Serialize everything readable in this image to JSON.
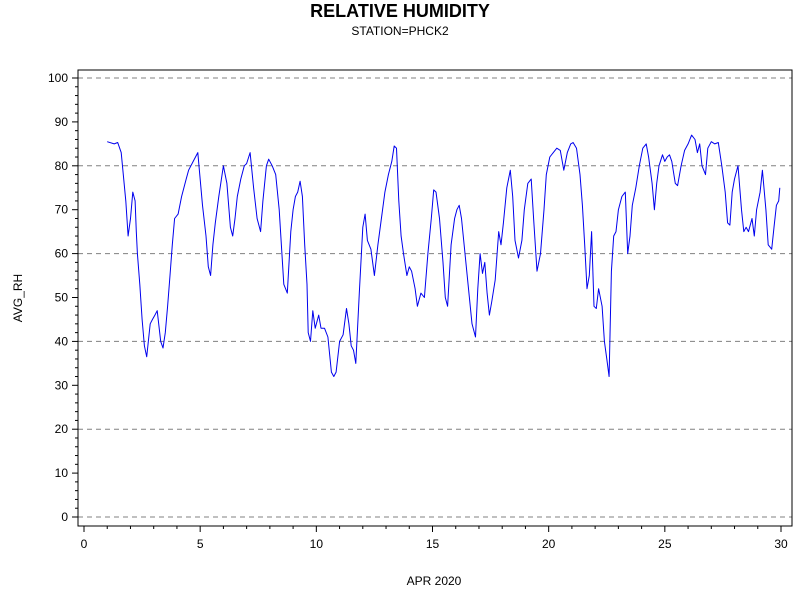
{
  "chart_data": {
    "type": "line",
    "title": "RELATIVE HUMIDITY",
    "subtitle": "STATION=PHCK2",
    "xlabel": "APR 2020",
    "ylabel": "AVG_RH",
    "xlim": [
      0,
      30
    ],
    "ylim": [
      0,
      100
    ],
    "x_ticks": [
      0,
      5,
      10,
      15,
      20,
      25,
      30
    ],
    "y_ticks": [
      0,
      10,
      20,
      30,
      40,
      50,
      60,
      70,
      80,
      90,
      100
    ],
    "grid": {
      "horizontal": true,
      "style": "dashed",
      "at": [
        0,
        20,
        40,
        60,
        80,
        100
      ]
    },
    "colors": {
      "line": "#0000ee",
      "grid": "#808080",
      "axis": "#000000"
    },
    "series": [
      {
        "x": [
          1.0,
          1.3,
          1.45,
          1.6,
          1.8,
          1.9,
          2.0,
          2.1,
          2.2,
          2.25,
          2.3,
          2.4,
          2.5,
          2.6,
          2.7,
          2.85,
          2.95,
          3.05,
          3.15,
          3.3,
          3.4,
          3.5,
          3.6,
          3.7,
          3.8,
          3.9,
          4.05,
          4.2,
          4.3,
          4.4,
          4.5,
          4.7,
          4.9,
          5.1,
          5.25,
          5.35,
          5.45,
          5.55,
          5.65,
          5.8,
          6.0,
          6.15,
          6.3,
          6.4,
          6.5,
          6.6,
          6.75,
          6.9,
          7.0,
          7.15,
          7.3,
          7.45,
          7.6,
          7.7,
          7.85,
          7.95,
          8.1,
          8.25,
          8.4,
          8.6,
          8.75,
          8.9,
          9.0,
          9.1,
          9.2,
          9.3,
          9.4,
          9.5,
          9.6,
          9.65,
          9.75,
          9.85,
          9.95,
          10.1,
          10.2,
          10.35,
          10.5,
          10.65,
          10.75,
          10.85,
          11.0,
          11.15,
          11.3,
          11.4,
          11.5,
          11.6,
          11.7,
          11.85,
          12.0,
          12.1,
          12.2,
          12.35,
          12.5,
          12.65,
          12.8,
          12.95,
          13.1,
          13.25,
          13.35,
          13.45,
          13.55,
          13.65,
          13.75,
          13.9,
          14.0,
          14.1,
          14.25,
          14.35,
          14.5,
          14.65,
          14.8,
          14.95,
          15.05,
          15.15,
          15.3,
          15.45,
          15.55,
          15.65,
          15.8,
          15.95,
          16.05,
          16.15,
          16.25,
          16.4,
          16.55,
          16.7,
          16.85,
          16.95,
          17.05,
          17.15,
          17.25,
          17.35,
          17.45,
          17.55,
          17.7,
          17.85,
          17.95,
          18.05,
          18.2,
          18.35,
          18.45,
          18.55,
          18.7,
          18.85,
          18.95,
          19.1,
          19.25,
          19.35,
          19.5,
          19.65,
          19.8,
          19.9,
          20.05,
          20.2,
          20.35,
          20.5,
          20.65,
          20.8,
          20.95,
          21.05,
          21.2,
          21.35,
          21.45,
          21.55,
          21.65,
          21.75,
          21.85,
          21.95,
          22.05,
          22.15,
          22.3,
          22.4,
          22.5,
          22.6,
          22.7,
          22.8,
          22.9,
          23.0,
          23.15,
          23.3,
          23.4,
          23.5,
          23.6,
          23.75,
          23.9,
          24.05,
          24.2,
          24.3,
          24.45,
          24.55,
          24.65,
          24.75,
          24.9,
          25.0,
          25.1,
          25.2,
          25.3,
          25.45,
          25.55,
          25.7,
          25.85,
          26.0,
          26.15,
          26.3,
          26.4,
          26.5,
          26.6,
          26.75,
          26.85,
          27.0,
          27.15,
          27.3,
          27.45,
          27.6,
          27.7,
          27.8,
          27.9,
          28.0,
          28.15,
          28.3,
          28.4,
          28.5,
          28.6,
          28.75,
          28.85,
          28.95,
          29.1,
          29.2,
          29.35,
          29.45,
          29.6,
          29.7,
          29.8,
          29.9,
          29.95
        ],
        "y": [
          85.5,
          85.0,
          85.3,
          83.0,
          72.0,
          64.0,
          68.0,
          74.0,
          72.0,
          65.0,
          60.0,
          53.0,
          45.0,
          39.0,
          36.5,
          44.0,
          45.0,
          46.0,
          47.0,
          40.0,
          38.5,
          42.0,
          48.0,
          55.0,
          62.0,
          68.0,
          69.0,
          73.0,
          75.0,
          77.0,
          79.0,
          81.0,
          83.0,
          71.0,
          64.0,
          57.0,
          55.0,
          62.0,
          67.0,
          73.0,
          80.0,
          76.0,
          66.0,
          64.0,
          68.0,
          73.0,
          77.0,
          80.0,
          80.5,
          83.0,
          75.0,
          68.0,
          65.0,
          72.0,
          80.0,
          81.5,
          80.0,
          78.0,
          70.0,
          53.0,
          51.0,
          65.0,
          70.0,
          73.0,
          74.0,
          76.5,
          73.0,
          62.0,
          53.0,
          42.0,
          40.0,
          47.0,
          43.0,
          46.0,
          43.0,
          43.0,
          41.0,
          33.0,
          32.0,
          33.0,
          40.0,
          41.5,
          47.5,
          44.0,
          39.0,
          38.0,
          35.0,
          51.0,
          66.0,
          69.0,
          63.0,
          61.0,
          55.0,
          62.0,
          68.0,
          74.0,
          78.0,
          81.0,
          84.5,
          84.0,
          72.0,
          64.0,
          60.0,
          55.0,
          57.0,
          56.0,
          52.0,
          48.0,
          51.0,
          50.0,
          60.0,
          68.0,
          74.5,
          74.0,
          68.0,
          58.0,
          50.0,
          48.0,
          62.0,
          68.0,
          70.0,
          71.0,
          68.0,
          60.0,
          52.0,
          44.0,
          41.0,
          52.0,
          60.0,
          55.5,
          58.0,
          51.0,
          46.0,
          49.0,
          54.0,
          65.0,
          62.0,
          67.0,
          75.0,
          79.0,
          73.0,
          63.0,
          59.0,
          63.0,
          70.0,
          76.0,
          77.0,
          68.0,
          56.0,
          60.0,
          70.0,
          78.0,
          82.0,
          83.0,
          84.0,
          83.5,
          79.0,
          83.0,
          85.0,
          85.3,
          84.0,
          78.0,
          71.0,
          62.0,
          52.0,
          55.0,
          65.0,
          48.0,
          47.5,
          52.0,
          48.0,
          40.0,
          36.0,
          32.0,
          56.0,
          64.0,
          65.0,
          70.0,
          73.0,
          74.0,
          60.0,
          64.0,
          71.0,
          75.0,
          80.0,
          84.0,
          85.0,
          82.0,
          76.0,
          70.0,
          76.0,
          80.0,
          82.5,
          81.0,
          82.0,
          82.5,
          81.0,
          76.0,
          75.5,
          80.0,
          83.5,
          85.0,
          87.0,
          86.0,
          83.0,
          85.0,
          80.0,
          78.0,
          84.0,
          85.5,
          85.0,
          85.3,
          80.0,
          74.0,
          67.0,
          66.5,
          74.0,
          77.0,
          80.0,
          70.0,
          65.0,
          66.0,
          65.0,
          68.0,
          64.0,
          70.0,
          74.0,
          79.0,
          70.0,
          62.0,
          61.0,
          66.0,
          71.0,
          72.0,
          75.0
        ]
      }
    ]
  }
}
